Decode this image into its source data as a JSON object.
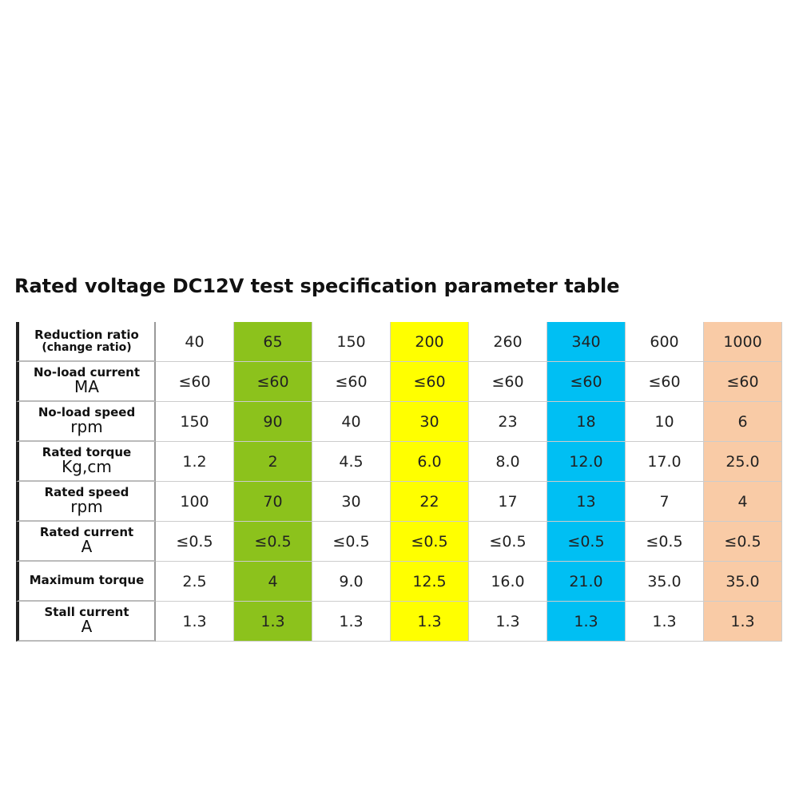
{
  "title": "Rated voltage DC12V test specification parameter table",
  "table": {
    "column_colors": [
      "#ffffff",
      "#8cc21c",
      "#ffffff",
      "#ffff00",
      "#ffffff",
      "#00bff3",
      "#ffffff",
      "#f9cba6"
    ],
    "rows": [
      {
        "label": "Reduction ratio",
        "unit": "(change ratio)",
        "cells": [
          "40",
          "65",
          "150",
          "200",
          "260",
          "340",
          "600",
          "1000"
        ]
      },
      {
        "label": "No-load current",
        "unit": "MA",
        "cells": [
          "≤60",
          "≤60",
          "≤60",
          "≤60",
          "≤60",
          "≤60",
          "≤60",
          "≤60"
        ]
      },
      {
        "label": "No-load speed",
        "unit": "rpm",
        "cells": [
          "150",
          "90",
          "40",
          "30",
          "23",
          "18",
          "10",
          "6"
        ]
      },
      {
        "label": "Rated torque",
        "unit": "Kg,cm",
        "cells": [
          "1.2",
          "2",
          "4.5",
          "6.0",
          "8.0",
          "12.0",
          "17.0",
          "25.0"
        ]
      },
      {
        "label": "Rated speed",
        "unit": "rpm",
        "cells": [
          "100",
          "70",
          "30",
          "22",
          "17",
          "13",
          "7",
          "4"
        ]
      },
      {
        "label": "Rated current",
        "unit": "A",
        "cells": [
          "≤0.5",
          "≤0.5",
          "≤0.5",
          "≤0.5",
          "≤0.5",
          "≤0.5",
          "≤0.5",
          "≤0.5"
        ]
      },
      {
        "label": "Maximum torque",
        "cells": [
          "2.5",
          "4",
          "9.0",
          "12.5",
          "16.0",
          "21.0",
          "35.0",
          "35.0"
        ]
      },
      {
        "label": "Stall current",
        "unit": "A",
        "cells": [
          "1.3",
          "1.3",
          "1.3",
          "1.3",
          "1.3",
          "1.3",
          "1.3",
          "1.3"
        ]
      }
    ]
  }
}
